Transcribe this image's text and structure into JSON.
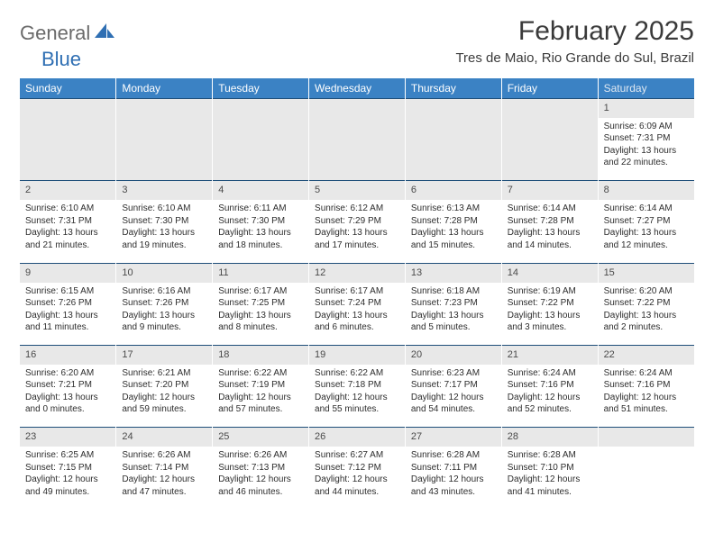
{
  "brand": {
    "part1": "General",
    "part2": "Blue"
  },
  "title": "February 2025",
  "location": "Tres de Maio, Rio Grande do Sul, Brazil",
  "colors": {
    "header_bg": "#3b82c4",
    "header_text": "#ffffff",
    "daynum_bg": "#e8e8e8",
    "border_top": "#1e4e79",
    "brand_gray": "#6a6a6a",
    "brand_blue": "#2f6fb3",
    "text": "#2d2d2d"
  },
  "weekdays": [
    "Sunday",
    "Monday",
    "Tuesday",
    "Wednesday",
    "Thursday",
    "Friday",
    "Saturday"
  ],
  "weeks": [
    [
      null,
      null,
      null,
      null,
      null,
      null,
      {
        "n": "1",
        "sr": "Sunrise: 6:09 AM",
        "ss": "Sunset: 7:31 PM",
        "d1": "Daylight: 13 hours",
        "d2": "and 22 minutes."
      }
    ],
    [
      {
        "n": "2",
        "sr": "Sunrise: 6:10 AM",
        "ss": "Sunset: 7:31 PM",
        "d1": "Daylight: 13 hours",
        "d2": "and 21 minutes."
      },
      {
        "n": "3",
        "sr": "Sunrise: 6:10 AM",
        "ss": "Sunset: 7:30 PM",
        "d1": "Daylight: 13 hours",
        "d2": "and 19 minutes."
      },
      {
        "n": "4",
        "sr": "Sunrise: 6:11 AM",
        "ss": "Sunset: 7:30 PM",
        "d1": "Daylight: 13 hours",
        "d2": "and 18 minutes."
      },
      {
        "n": "5",
        "sr": "Sunrise: 6:12 AM",
        "ss": "Sunset: 7:29 PM",
        "d1": "Daylight: 13 hours",
        "d2": "and 17 minutes."
      },
      {
        "n": "6",
        "sr": "Sunrise: 6:13 AM",
        "ss": "Sunset: 7:28 PM",
        "d1": "Daylight: 13 hours",
        "d2": "and 15 minutes."
      },
      {
        "n": "7",
        "sr": "Sunrise: 6:14 AM",
        "ss": "Sunset: 7:28 PM",
        "d1": "Daylight: 13 hours",
        "d2": "and 14 minutes."
      },
      {
        "n": "8",
        "sr": "Sunrise: 6:14 AM",
        "ss": "Sunset: 7:27 PM",
        "d1": "Daylight: 13 hours",
        "d2": "and 12 minutes."
      }
    ],
    [
      {
        "n": "9",
        "sr": "Sunrise: 6:15 AM",
        "ss": "Sunset: 7:26 PM",
        "d1": "Daylight: 13 hours",
        "d2": "and 11 minutes."
      },
      {
        "n": "10",
        "sr": "Sunrise: 6:16 AM",
        "ss": "Sunset: 7:26 PM",
        "d1": "Daylight: 13 hours",
        "d2": "and 9 minutes."
      },
      {
        "n": "11",
        "sr": "Sunrise: 6:17 AM",
        "ss": "Sunset: 7:25 PM",
        "d1": "Daylight: 13 hours",
        "d2": "and 8 minutes."
      },
      {
        "n": "12",
        "sr": "Sunrise: 6:17 AM",
        "ss": "Sunset: 7:24 PM",
        "d1": "Daylight: 13 hours",
        "d2": "and 6 minutes."
      },
      {
        "n": "13",
        "sr": "Sunrise: 6:18 AM",
        "ss": "Sunset: 7:23 PM",
        "d1": "Daylight: 13 hours",
        "d2": "and 5 minutes."
      },
      {
        "n": "14",
        "sr": "Sunrise: 6:19 AM",
        "ss": "Sunset: 7:22 PM",
        "d1": "Daylight: 13 hours",
        "d2": "and 3 minutes."
      },
      {
        "n": "15",
        "sr": "Sunrise: 6:20 AM",
        "ss": "Sunset: 7:22 PM",
        "d1": "Daylight: 13 hours",
        "d2": "and 2 minutes."
      }
    ],
    [
      {
        "n": "16",
        "sr": "Sunrise: 6:20 AM",
        "ss": "Sunset: 7:21 PM",
        "d1": "Daylight: 13 hours",
        "d2": "and 0 minutes."
      },
      {
        "n": "17",
        "sr": "Sunrise: 6:21 AM",
        "ss": "Sunset: 7:20 PM",
        "d1": "Daylight: 12 hours",
        "d2": "and 59 minutes."
      },
      {
        "n": "18",
        "sr": "Sunrise: 6:22 AM",
        "ss": "Sunset: 7:19 PM",
        "d1": "Daylight: 12 hours",
        "d2": "and 57 minutes."
      },
      {
        "n": "19",
        "sr": "Sunrise: 6:22 AM",
        "ss": "Sunset: 7:18 PM",
        "d1": "Daylight: 12 hours",
        "d2": "and 55 minutes."
      },
      {
        "n": "20",
        "sr": "Sunrise: 6:23 AM",
        "ss": "Sunset: 7:17 PM",
        "d1": "Daylight: 12 hours",
        "d2": "and 54 minutes."
      },
      {
        "n": "21",
        "sr": "Sunrise: 6:24 AM",
        "ss": "Sunset: 7:16 PM",
        "d1": "Daylight: 12 hours",
        "d2": "and 52 minutes."
      },
      {
        "n": "22",
        "sr": "Sunrise: 6:24 AM",
        "ss": "Sunset: 7:16 PM",
        "d1": "Daylight: 12 hours",
        "d2": "and 51 minutes."
      }
    ],
    [
      {
        "n": "23",
        "sr": "Sunrise: 6:25 AM",
        "ss": "Sunset: 7:15 PM",
        "d1": "Daylight: 12 hours",
        "d2": "and 49 minutes."
      },
      {
        "n": "24",
        "sr": "Sunrise: 6:26 AM",
        "ss": "Sunset: 7:14 PM",
        "d1": "Daylight: 12 hours",
        "d2": "and 47 minutes."
      },
      {
        "n": "25",
        "sr": "Sunrise: 6:26 AM",
        "ss": "Sunset: 7:13 PM",
        "d1": "Daylight: 12 hours",
        "d2": "and 46 minutes."
      },
      {
        "n": "26",
        "sr": "Sunrise: 6:27 AM",
        "ss": "Sunset: 7:12 PM",
        "d1": "Daylight: 12 hours",
        "d2": "and 44 minutes."
      },
      {
        "n": "27",
        "sr": "Sunrise: 6:28 AM",
        "ss": "Sunset: 7:11 PM",
        "d1": "Daylight: 12 hours",
        "d2": "and 43 minutes."
      },
      {
        "n": "28",
        "sr": "Sunrise: 6:28 AM",
        "ss": "Sunset: 7:10 PM",
        "d1": "Daylight: 12 hours",
        "d2": "and 41 minutes."
      },
      null
    ]
  ]
}
